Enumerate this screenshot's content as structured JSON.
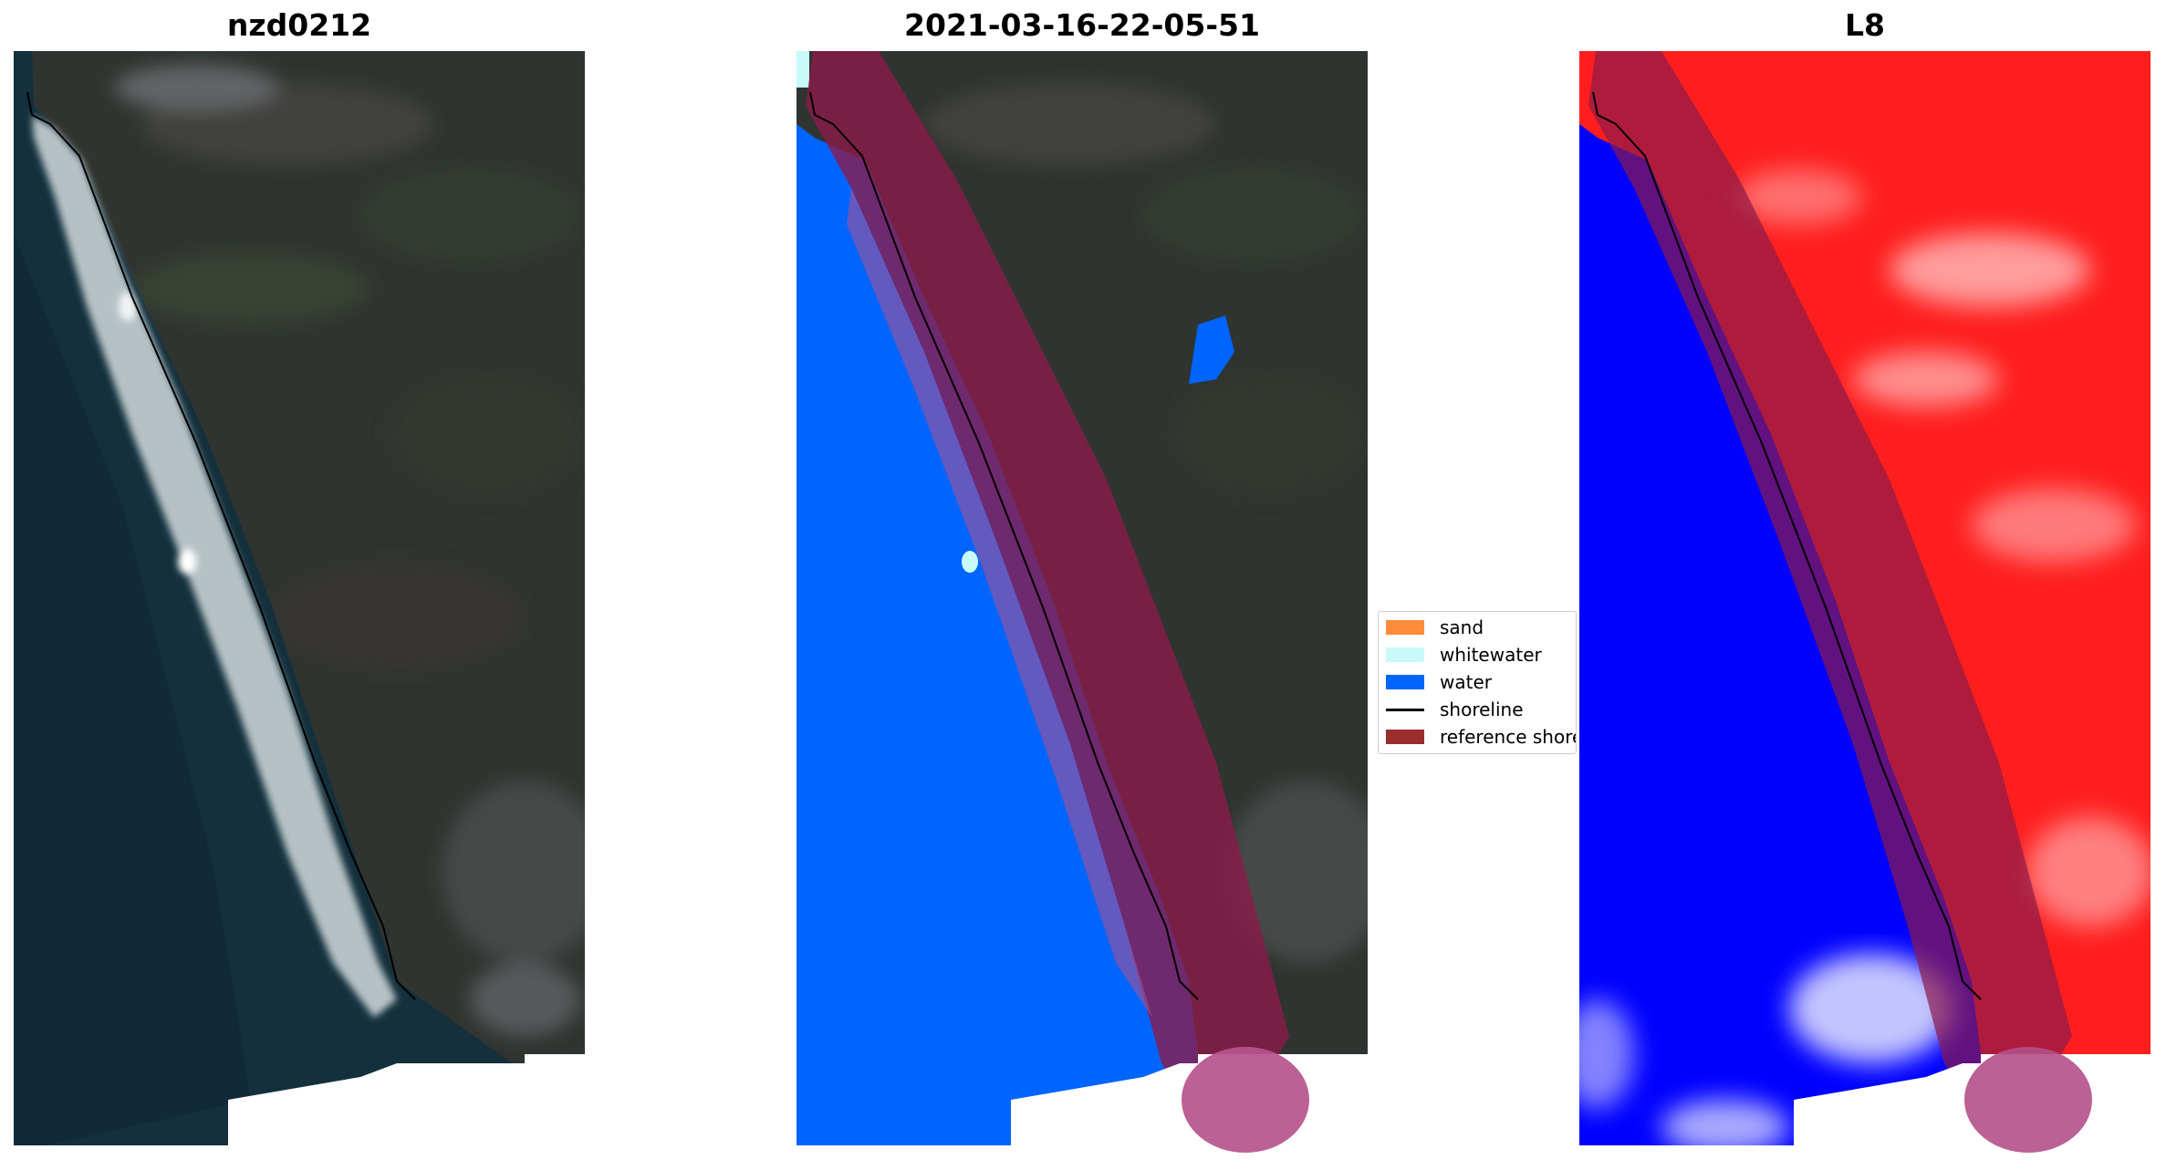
{
  "panels": [
    {
      "title": "nzd0212"
    },
    {
      "title": "2021-03-16-22-05-51"
    },
    {
      "title": "L8"
    }
  ],
  "legend": {
    "items": [
      {
        "label": "sand",
        "color": "#ff8c3a"
      },
      {
        "label": "whitewater",
        "color": "#c8fafa"
      },
      {
        "label": "water",
        "color": "#0064ff"
      },
      {
        "label": "shoreline",
        "color": "#000000"
      },
      {
        "label": "reference shoreline",
        "color": "#9b2d2d"
      }
    ]
  },
  "colors": {
    "land": "#2f3430",
    "ocean": "#13303c",
    "surf": "#dfe6e8",
    "classified_water": "#0064ff",
    "buffer": "#8b1a4a",
    "index_land": "#ff1e1e",
    "index_water": "#0000ff"
  }
}
